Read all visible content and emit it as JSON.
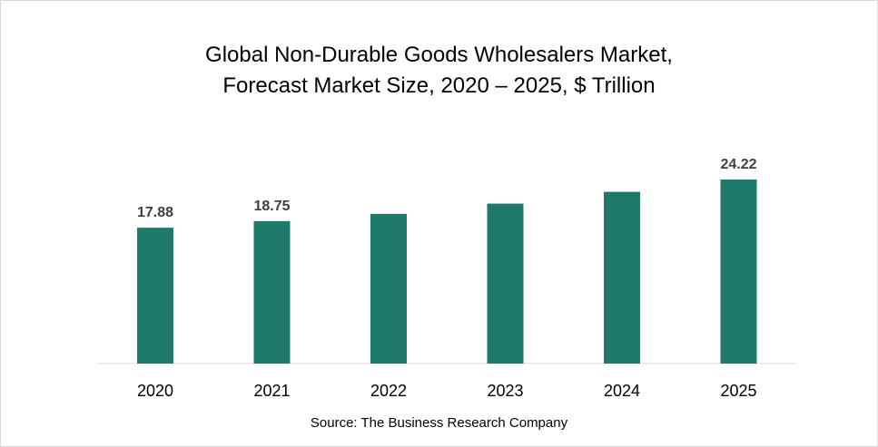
{
  "chart_data": {
    "type": "bar",
    "title_line1": "Global Non-Durable Goods Wholesalers Market,",
    "title_line2": "Forecast Market Size, 2020 – 2025, $ Trillion",
    "categories": [
      "2020",
      "2021",
      "2022",
      "2023",
      "2024",
      "2025"
    ],
    "values": [
      17.88,
      18.75,
      19.7,
      21.05,
      22.6,
      24.22
    ],
    "data_labels": [
      "17.88",
      "18.75",
      "",
      "",
      "",
      "24.22"
    ],
    "bar_color": "#1f7a6c",
    "ylim": [
      0,
      24.22
    ],
    "grid": false,
    "legend": "none"
  },
  "source": "Source: The Business Research Company"
}
